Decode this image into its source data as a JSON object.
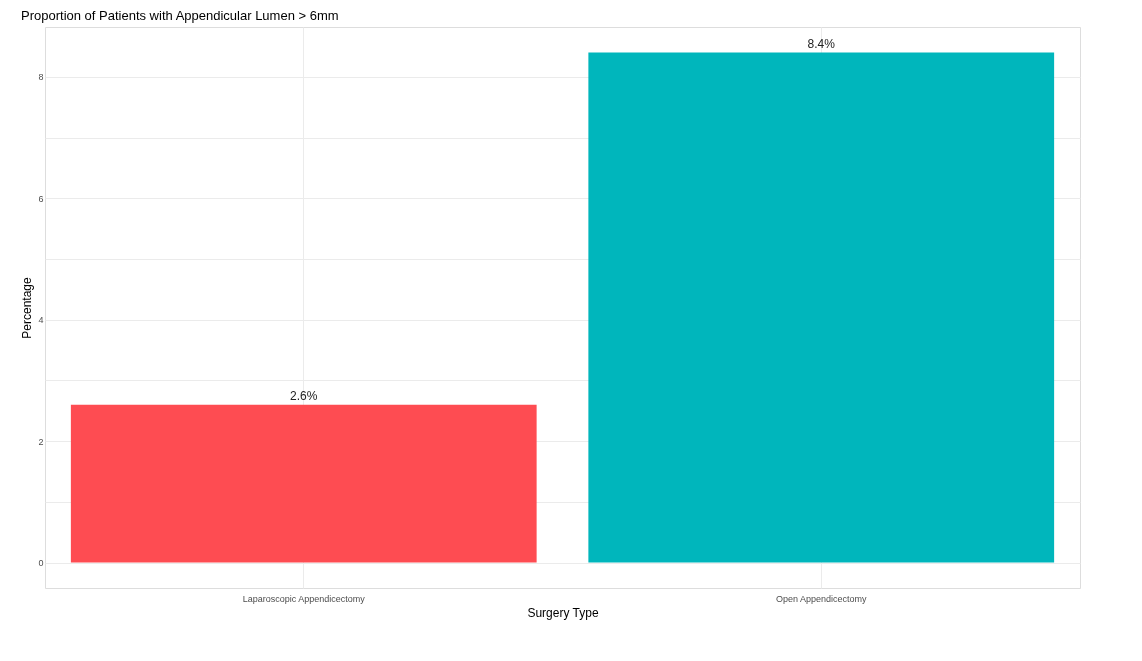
{
  "chart_data": {
    "type": "bar",
    "title": "Proportion of Patients with Appendicular Lumen > 6mm",
    "xlabel": "Surgery Type",
    "ylabel": "Percentage",
    "categories": [
      "Laparoscopic Appendicectomy",
      "Open Appendicectomy"
    ],
    "values": [
      2.6,
      8.4
    ],
    "colors": [
      "#fe4c52",
      "#00b6bc"
    ],
    "value_labels": [
      "2.6%",
      "8.4%"
    ],
    "ylim": [
      -0.42,
      8.82
    ],
    "yticks": [
      0,
      {
        "value": 1,
        "label": null
      },
      2,
      {
        "value": 3,
        "label": null
      },
      4,
      {
        "value": 5,
        "label": null
      },
      6,
      {
        "value": 7,
        "label": null
      },
      8
    ],
    "grid": true
  }
}
